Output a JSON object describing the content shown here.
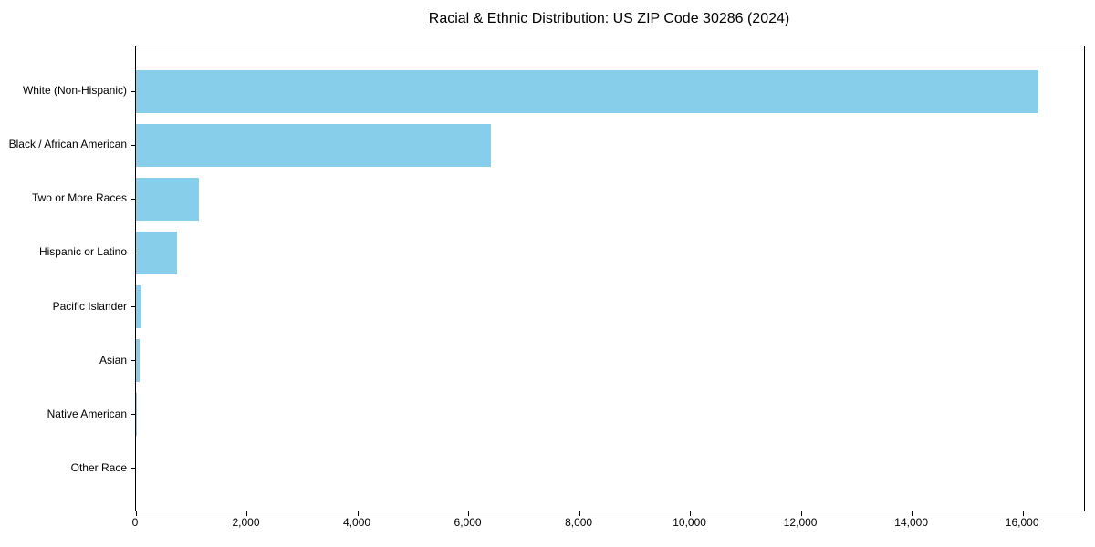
{
  "chart_data": {
    "type": "bar",
    "orientation": "horizontal",
    "title": "Racial & Ethnic Distribution: US ZIP Code 30286 (2024)",
    "categories": [
      "White (Non-Hispanic)",
      "Black / African American",
      "Two or More Races",
      "Hispanic or Latino",
      "Pacific Islander",
      "Asian",
      "Native American",
      "Other Race"
    ],
    "values": [
      16280,
      6400,
      1140,
      740,
      100,
      70,
      20,
      0
    ],
    "xlabel": "",
    "ylabel": "",
    "xlim": [
      0,
      17100
    ],
    "xticks": [
      0,
      2000,
      4000,
      6000,
      8000,
      10000,
      12000,
      14000,
      16000
    ],
    "xtick_labels": [
      "0",
      "2,000",
      "4,000",
      "6,000",
      "8,000",
      "10,000",
      "12,000",
      "14,000",
      "16,000"
    ],
    "bar_color": "#87CEEB",
    "text_color": "#000000",
    "grid": false,
    "legend": null
  }
}
